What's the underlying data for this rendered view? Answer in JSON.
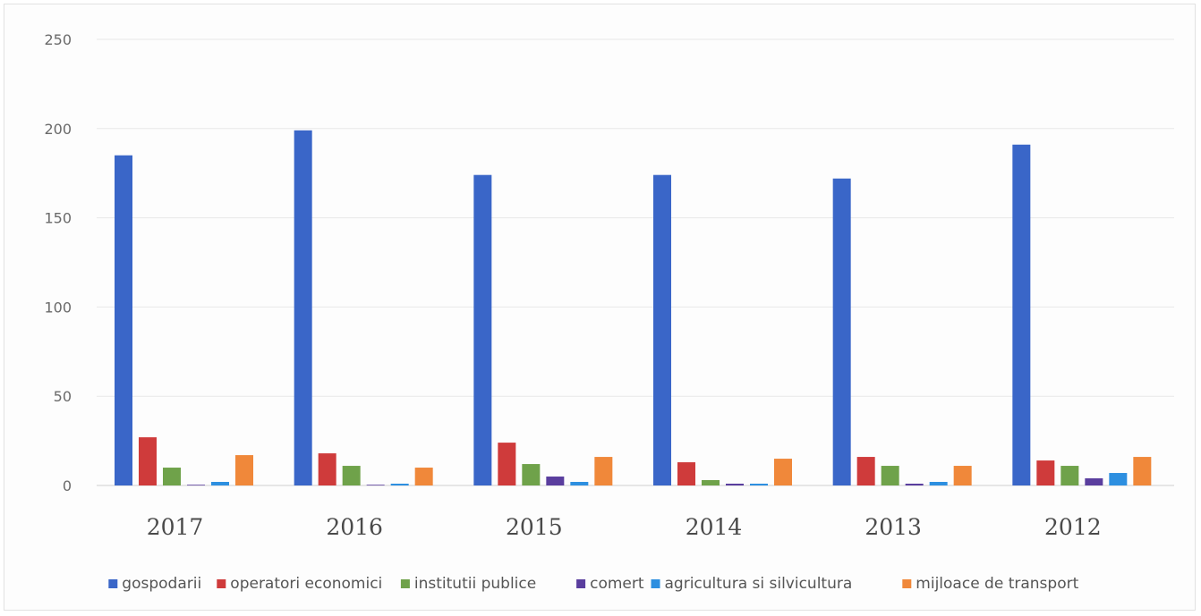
{
  "chart_data": {
    "type": "bar",
    "title": "",
    "xlabel": "",
    "ylabel": "",
    "ylim": [
      0,
      250
    ],
    "yticks": [
      0,
      50,
      100,
      150,
      200,
      250
    ],
    "grid": true,
    "legend_position": "bottom",
    "categories": [
      "2017",
      "2016",
      "2015",
      "2014",
      "2013",
      "2012"
    ],
    "series": [
      {
        "name": "gospodarii",
        "color": "#3a66c8",
        "values": [
          185,
          199,
          174,
          174,
          172,
          191
        ]
      },
      {
        "name": "operatori economici",
        "color": "#cf3b3b",
        "values": [
          27,
          18,
          24,
          13,
          16,
          14
        ]
      },
      {
        "name": "institutii publice",
        "color": "#6fa24a",
        "values": [
          10,
          11,
          12,
          3,
          11,
          11
        ]
      },
      {
        "name": "comert",
        "color": "#5a3e9e",
        "values": [
          0,
          0,
          5,
          1,
          1,
          4
        ]
      },
      {
        "name": "agricultura si silvicultura",
        "color": "#2d8fe0",
        "values": [
          2,
          1,
          2,
          1,
          2,
          7
        ]
      },
      {
        "name": "mijloace de transport",
        "color": "#f0883a",
        "values": [
          17,
          10,
          16,
          15,
          11,
          16
        ]
      }
    ]
  }
}
